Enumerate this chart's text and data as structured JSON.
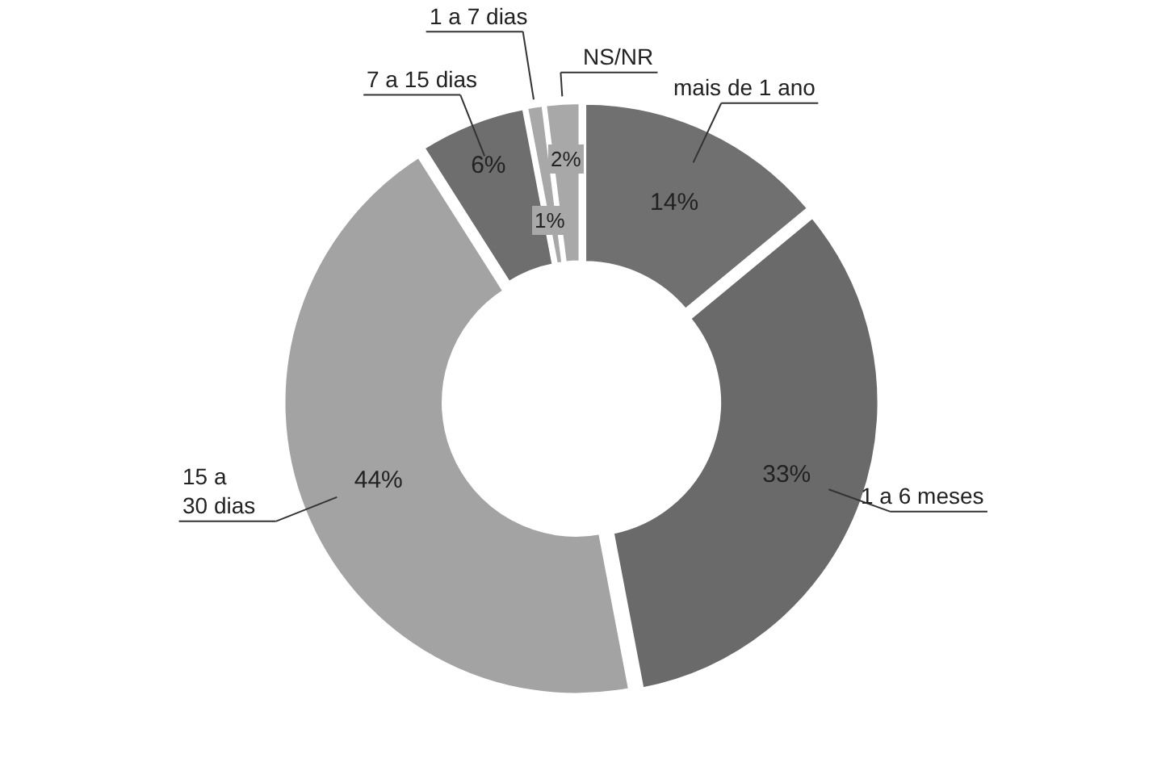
{
  "chart_data": {
    "type": "donut",
    "categories": [
      "mais de 1 ano",
      "1 a 6 meses",
      "15 a 30 dias",
      "7 a 15 dias",
      "1 a 7 dias",
      "NS/NR"
    ],
    "values": [
      14,
      33,
      44,
      6,
      1,
      2
    ],
    "value_labels": [
      "14%",
      "33%",
      "44%",
      "6%",
      "1%",
      "2%"
    ],
    "colors": [
      "#707070",
      "#6a6a6a",
      "#a3a3a3",
      "#6e6e6e",
      "#a8a8a8",
      "#a8a8a8"
    ],
    "legend": false
  }
}
